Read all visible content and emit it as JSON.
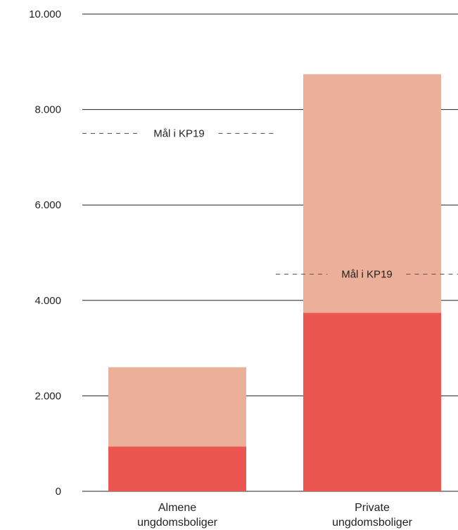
{
  "chart_data": {
    "type": "bar",
    "stacked": true,
    "categories": [
      [
        "Almene",
        "ungdomsboliger"
      ],
      [
        "Private",
        "ungdomsboliger"
      ]
    ],
    "series": [
      {
        "values": [
          940,
          3740
        ],
        "color": "#EB5750"
      },
      {
        "values": [
          1660,
          5000
        ],
        "color": "#ECAF9A"
      }
    ],
    "ylim": [
      0,
      10000
    ],
    "yticks": [
      0,
      2000,
      4000,
      6000,
      8000,
      10000
    ],
    "ytick_labels": [
      "0",
      "2.000",
      "4.000",
      "6.000",
      "8.000",
      "10.000"
    ],
    "grid": true,
    "reference_lines": [
      {
        "category_index": 0,
        "value": 7500,
        "label": "Mål i KP19"
      },
      {
        "category_index": 1,
        "value": 4550,
        "label": "Mål i KP19"
      }
    ],
    "colors": {
      "grid": "#222222",
      "reference": "#555555",
      "text": "#222222"
    }
  }
}
